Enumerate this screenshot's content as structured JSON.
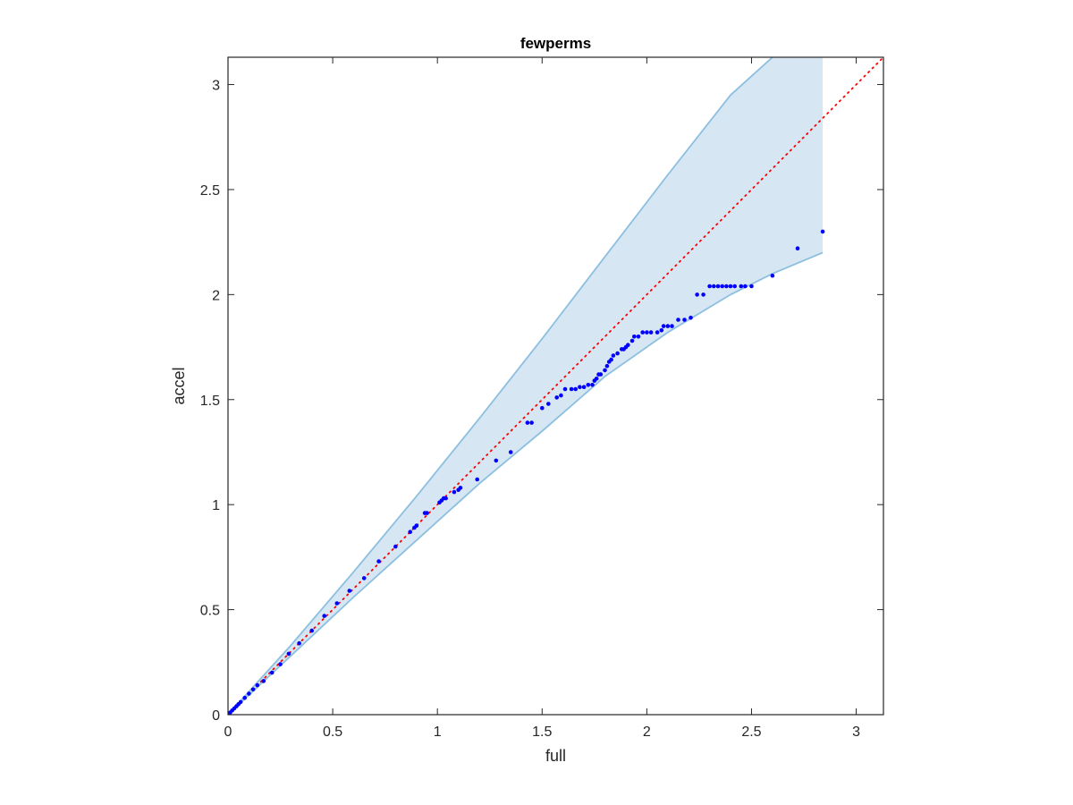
{
  "chart_data": {
    "type": "scatter",
    "title": "fewperms",
    "xlabel": "full",
    "ylabel": "accel",
    "xlim": [
      0,
      3.13
    ],
    "ylim": [
      0,
      3.13
    ],
    "xticks": [
      "0",
      "0.5",
      "1",
      "1.5",
      "2",
      "2.5",
      "3"
    ],
    "yticks": [
      "0",
      "0.5",
      "1",
      "1.5",
      "2",
      "2.5",
      "3"
    ],
    "grid": false,
    "colors": {
      "points": "#0000ff",
      "reference_line": "#ff0000",
      "band_fill": "#d6e6f3",
      "band_edge": "#8cbfe0",
      "axes": "#262626"
    },
    "reference_line": {
      "style": "dotted",
      "from": [
        0,
        0
      ],
      "to": [
        3.13,
        3.13
      ]
    },
    "confidence_band": {
      "x_end": 2.84,
      "upper": [
        [
          0,
          0
        ],
        [
          0.3,
          0.33
        ],
        [
          0.6,
          0.68
        ],
        [
          0.9,
          1.04
        ],
        [
          1.2,
          1.41
        ],
        [
          1.5,
          1.79
        ],
        [
          1.8,
          2.18
        ],
        [
          2.1,
          2.57
        ],
        [
          2.4,
          2.95
        ],
        [
          2.6,
          3.13
        ],
        [
          2.84,
          3.13
        ]
      ],
      "lower": [
        [
          0,
          0
        ],
        [
          0.3,
          0.28
        ],
        [
          0.6,
          0.56
        ],
        [
          0.9,
          0.83
        ],
        [
          1.2,
          1.1
        ],
        [
          1.5,
          1.35
        ],
        [
          1.8,
          1.61
        ],
        [
          2.1,
          1.82
        ],
        [
          2.4,
          2.0
        ],
        [
          2.6,
          2.1
        ],
        [
          2.84,
          2.2
        ]
      ]
    },
    "series": [
      {
        "points": [
          [
            0.01,
            0.01
          ],
          [
            0.02,
            0.02
          ],
          [
            0.03,
            0.03
          ],
          [
            0.04,
            0.04
          ],
          [
            0.05,
            0.05
          ],
          [
            0.06,
            0.06
          ],
          [
            0.08,
            0.08
          ],
          [
            0.1,
            0.1
          ],
          [
            0.12,
            0.12
          ],
          [
            0.14,
            0.14
          ],
          [
            0.17,
            0.16
          ],
          [
            0.21,
            0.2
          ],
          [
            0.25,
            0.24
          ],
          [
            0.29,
            0.29
          ],
          [
            0.34,
            0.34
          ],
          [
            0.4,
            0.4
          ],
          [
            0.46,
            0.47
          ],
          [
            0.52,
            0.53
          ],
          [
            0.58,
            0.59
          ],
          [
            0.65,
            0.65
          ],
          [
            0.72,
            0.73
          ],
          [
            0.8,
            0.8
          ],
          [
            0.87,
            0.87
          ],
          [
            0.89,
            0.89
          ],
          [
            0.9,
            0.9
          ],
          [
            0.94,
            0.96
          ],
          [
            0.95,
            0.96
          ],
          [
            1.01,
            1.01
          ],
          [
            1.02,
            1.02
          ],
          [
            1.03,
            1.03
          ],
          [
            1.04,
            1.03
          ],
          [
            1.08,
            1.06
          ],
          [
            1.1,
            1.07
          ],
          [
            1.11,
            1.08
          ],
          [
            1.19,
            1.12
          ],
          [
            1.28,
            1.21
          ],
          [
            1.35,
            1.25
          ],
          [
            1.43,
            1.39
          ],
          [
            1.45,
            1.39
          ],
          [
            1.5,
            1.46
          ],
          [
            1.53,
            1.48
          ],
          [
            1.57,
            1.51
          ],
          [
            1.59,
            1.52
          ],
          [
            1.61,
            1.55
          ],
          [
            1.64,
            1.55
          ],
          [
            1.66,
            1.55
          ],
          [
            1.68,
            1.56
          ],
          [
            1.7,
            1.56
          ],
          [
            1.72,
            1.57
          ],
          [
            1.74,
            1.57
          ],
          [
            1.75,
            1.59
          ],
          [
            1.76,
            1.6
          ],
          [
            1.77,
            1.62
          ],
          [
            1.78,
            1.62
          ],
          [
            1.8,
            1.64
          ],
          [
            1.81,
            1.66
          ],
          [
            1.82,
            1.68
          ],
          [
            1.83,
            1.69
          ],
          [
            1.84,
            1.71
          ],
          [
            1.86,
            1.72
          ],
          [
            1.88,
            1.74
          ],
          [
            1.89,
            1.74
          ],
          [
            1.9,
            1.75
          ],
          [
            1.91,
            1.76
          ],
          [
            1.93,
            1.78
          ],
          [
            1.94,
            1.8
          ],
          [
            1.96,
            1.8
          ],
          [
            1.98,
            1.82
          ],
          [
            2.0,
            1.82
          ],
          [
            2.02,
            1.82
          ],
          [
            2.05,
            1.82
          ],
          [
            2.07,
            1.83
          ],
          [
            2.08,
            1.85
          ],
          [
            2.1,
            1.85
          ],
          [
            2.12,
            1.85
          ],
          [
            2.15,
            1.88
          ],
          [
            2.18,
            1.88
          ],
          [
            2.21,
            1.89
          ],
          [
            2.24,
            2.0
          ],
          [
            2.27,
            2.0
          ],
          [
            2.3,
            2.04
          ],
          [
            2.32,
            2.04
          ],
          [
            2.34,
            2.04
          ],
          [
            2.36,
            2.04
          ],
          [
            2.38,
            2.04
          ],
          [
            2.4,
            2.04
          ],
          [
            2.42,
            2.04
          ],
          [
            2.45,
            2.04
          ],
          [
            2.47,
            2.04
          ],
          [
            2.5,
            2.04
          ],
          [
            2.6,
            2.09
          ],
          [
            2.72,
            2.22
          ],
          [
            2.84,
            2.3
          ]
        ]
      }
    ]
  }
}
